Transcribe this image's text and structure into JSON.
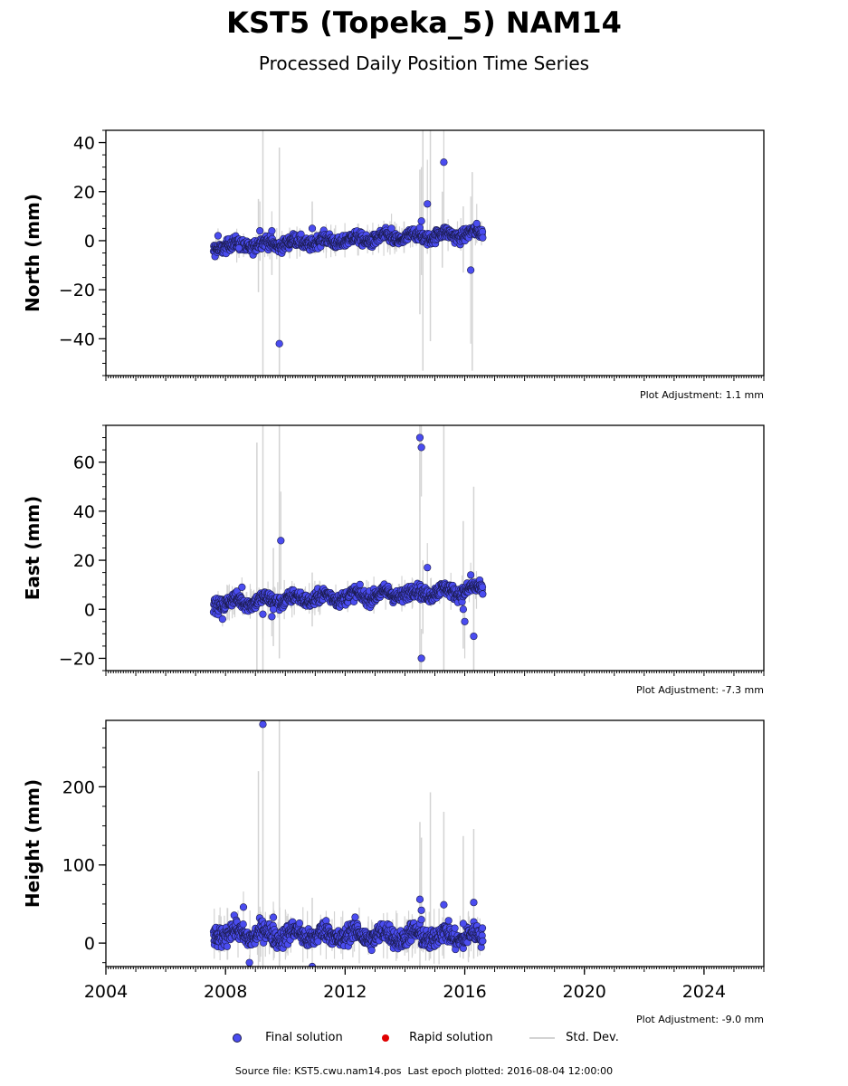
{
  "title": "KST5 (Topeka_5) NAM14",
  "subtitle": "Processed Daily Position Time Series",
  "footer": {
    "source_label": "Source file:",
    "source_file": "KST5.cwu.nam14.pos",
    "last_epoch_label": "Last epoch plotted:",
    "last_epoch": "2016-08-04 12:00:00"
  },
  "legend": {
    "final": "Final solution",
    "rapid": "Rapid solution",
    "std": "Std. Dev."
  },
  "colors": {
    "final": "#4a4cf0",
    "final_edge": "#1a1a4a",
    "rapid": "#e00000",
    "std": "#d3d3d3"
  },
  "chart_data": [
    {
      "type": "scatter",
      "ylabel": "North (mm)",
      "adjustment": "Plot Adjustment: 1.1 mm",
      "xlim": [
        2004,
        2026
      ],
      "ylim": [
        -55,
        45
      ],
      "yticks": [
        -40,
        -20,
        0,
        20,
        40
      ],
      "yminor_step": 5,
      "xlabels_shown": false,
      "data_start": 2007.6,
      "data_end": 2016.6,
      "trend": [
        -2.5,
        3.0
      ],
      "spread": 1.8,
      "outliers": [
        [
          2007.75,
          2,
          3
        ],
        [
          2008.45,
          -3,
          4
        ],
        [
          2009.15,
          4,
          12
        ],
        [
          2009.55,
          4,
          8
        ],
        [
          2009.8,
          -42,
          25
        ],
        [
          2010.9,
          5,
          8
        ],
        [
          2013.55,
          5,
          6
        ],
        [
          2014.55,
          8,
          22
        ],
        [
          2014.75,
          15,
          18
        ],
        [
          2015.3,
          32,
          25
        ],
        [
          2016.2,
          -12,
          30
        ],
        [
          2016.4,
          7,
          8
        ]
      ],
      "stdbars": [
        [
          2009.1,
          -21,
          17
        ],
        [
          2009.25,
          -55,
          45
        ],
        [
          2009.55,
          -14,
          5
        ],
        [
          2009.8,
          -55,
          38
        ],
        [
          2010.9,
          -5,
          16
        ],
        [
          2014.5,
          -30,
          29
        ],
        [
          2014.6,
          -53,
          45
        ],
        [
          2014.85,
          -41,
          45
        ],
        [
          2015.25,
          -11,
          20
        ],
        [
          2015.95,
          -13,
          14
        ],
        [
          2016.25,
          -53,
          28
        ]
      ]
    },
    {
      "type": "scatter",
      "ylabel": "East (mm)",
      "adjustment": "Plot Adjustment: -7.3 mm",
      "xlim": [
        2004,
        2026
      ],
      "ylim": [
        -25,
        75
      ],
      "yticks": [
        -20,
        0,
        20,
        40,
        60
      ],
      "yminor_step": 5,
      "xlabels_shown": false,
      "data_start": 2007.6,
      "data_end": 2016.6,
      "trend": [
        2.5,
        8.0
      ],
      "spread": 2.0,
      "outliers": [
        [
          2007.9,
          -4,
          3
        ],
        [
          2008.55,
          9,
          4
        ],
        [
          2009.25,
          -2,
          10
        ],
        [
          2009.55,
          -3,
          8
        ],
        [
          2009.6,
          0,
          6
        ],
        [
          2009.85,
          28,
          20
        ],
        [
          2014.5,
          70,
          30
        ],
        [
          2014.55,
          66,
          20
        ],
        [
          2014.55,
          -20,
          12
        ],
        [
          2014.75,
          17,
          10
        ],
        [
          2015.95,
          0,
          8
        ],
        [
          2016.0,
          -5,
          15
        ],
        [
          2016.3,
          -11,
          25
        ],
        [
          2016.2,
          14,
          5
        ]
      ],
      "stdbars": [
        [
          2009.05,
          -25,
          68
        ],
        [
          2009.25,
          -25,
          75
        ],
        [
          2009.6,
          -15,
          25
        ],
        [
          2009.8,
          -20,
          75
        ],
        [
          2010.9,
          -7,
          15
        ],
        [
          2014.5,
          -25,
          75
        ],
        [
          2014.6,
          -10,
          20
        ],
        [
          2015.3,
          -25,
          75
        ],
        [
          2015.95,
          -16,
          36
        ],
        [
          2016.3,
          -25,
          50
        ]
      ]
    },
    {
      "type": "scatter",
      "ylabel": "Height (mm)",
      "adjustment": "Plot Adjustment: -9.0 mm",
      "xlim": [
        2004,
        2026
      ],
      "ylim": [
        -30,
        285
      ],
      "yticks": [
        0,
        100,
        200
      ],
      "yminor_step": 25,
      "xlabels_shown": true,
      "xticks": [
        2004,
        2008,
        2012,
        2016,
        2020,
        2024
      ],
      "data_start": 2007.6,
      "data_end": 2016.6,
      "trend": [
        12,
        8
      ],
      "spread": 9,
      "outliers": [
        [
          2008.8,
          -25,
          10
        ],
        [
          2008.6,
          46,
          20
        ],
        [
          2009.25,
          280,
          60
        ],
        [
          2009.6,
          33,
          20
        ],
        [
          2010.9,
          -30,
          20
        ],
        [
          2014.5,
          56,
          40
        ],
        [
          2014.55,
          42,
          30
        ],
        [
          2014.55,
          30,
          20
        ],
        [
          2015.3,
          49,
          40
        ],
        [
          2015.95,
          25,
          20
        ],
        [
          2016.3,
          52,
          40
        ]
      ],
      "stdbars": [
        [
          2009.1,
          -30,
          220
        ],
        [
          2009.25,
          -30,
          285
        ],
        [
          2009.8,
          -30,
          285
        ],
        [
          2010.9,
          -10,
          58
        ],
        [
          2014.5,
          -30,
          155
        ],
        [
          2014.55,
          -10,
          135
        ],
        [
          2014.85,
          -20,
          193
        ],
        [
          2015.3,
          -20,
          168
        ],
        [
          2015.95,
          -20,
          137
        ],
        [
          2016.3,
          -20,
          146
        ]
      ]
    }
  ]
}
